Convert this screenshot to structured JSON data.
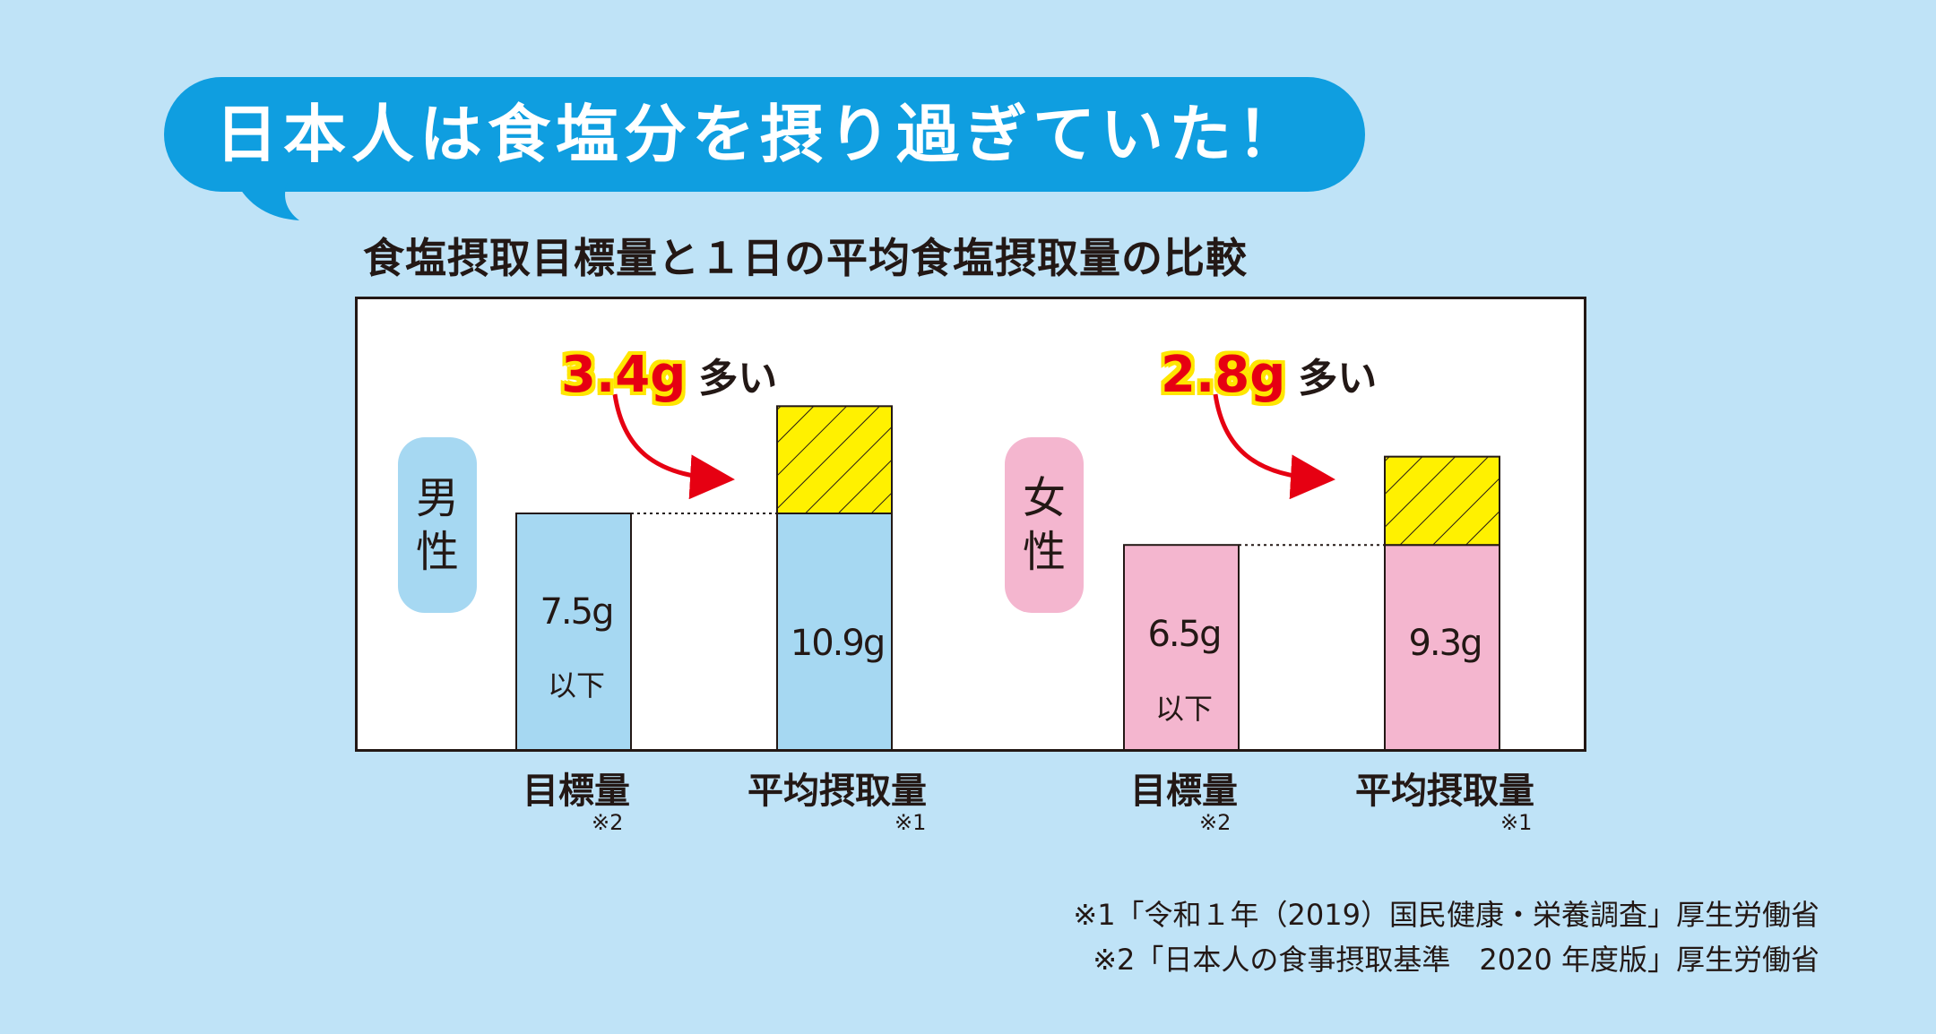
{
  "headline": "日本人は食塩分を摂り過ぎていた！",
  "subtitle": "食塩摂取目標量と１日の平均食塩摂取量の比較",
  "colors": {
    "background": "#bfe3f7",
    "bubble": "#0f9ee0",
    "male_bar": "#a6d8f2",
    "male_tag": "#a6d8f2",
    "female_bar": "#f4b6cf",
    "female_tag": "#f4b6cf",
    "excess_fill": "#fff100",
    "arrow": "#e60012"
  },
  "groups": [
    {
      "label_chars": [
        "男",
        "性"
      ],
      "diff_value": "3.4g",
      "diff_text": "多い",
      "bars": [
        {
          "x_label": "目標量",
          "note": "※2",
          "value_label": "7.5g",
          "sub_label": "以下"
        },
        {
          "x_label": "平均摂取量",
          "note": "※1",
          "value_label": "10.9g",
          "sub_label": ""
        }
      ]
    },
    {
      "label_chars": [
        "女",
        "性"
      ],
      "diff_value": "2.8g",
      "diff_text": "多い",
      "bars": [
        {
          "x_label": "目標量",
          "note": "※2",
          "value_label": "6.5g",
          "sub_label": "以下"
        },
        {
          "x_label": "平均摂取量",
          "note": "※1",
          "value_label": "9.3g",
          "sub_label": ""
        }
      ]
    }
  ],
  "chart_data": {
    "type": "bar",
    "title": "食塩摂取目標量と１日の平均食塩摂取量の比較",
    "categories": [
      "男性 目標量",
      "男性 平均摂取量",
      "女性 目標量",
      "女性 平均摂取量"
    ],
    "values": [
      7.5,
      10.9,
      6.5,
      9.3
    ],
    "excess": [
      0,
      3.4,
      0,
      2.8
    ],
    "units": "g"
  },
  "sources": [
    "※1「令和１年（2019）国民健康・栄養調査」厚生労働省",
    "※2「日本人の食事摂取基準　2020 年度版」厚生労働省"
  ]
}
